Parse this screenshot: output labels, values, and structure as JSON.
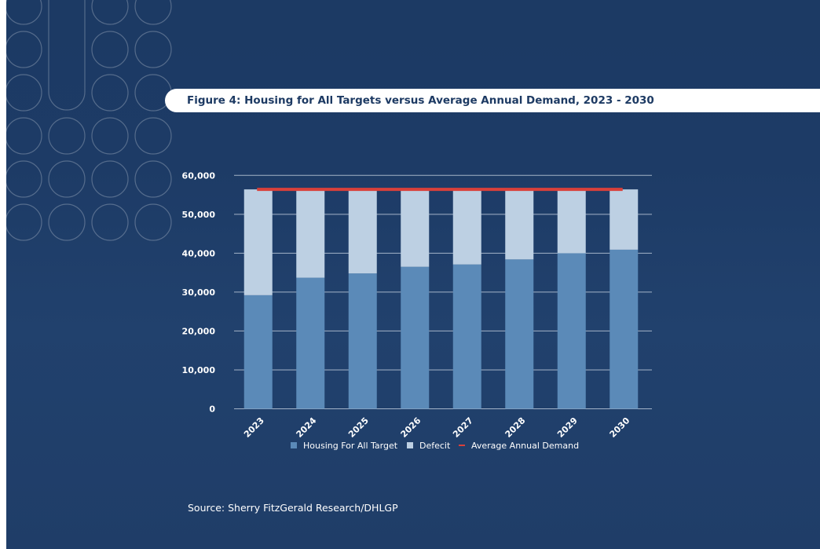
{
  "title": "Figure 4: Housing for All Targets versus Average Annual Demand, 2023 - 2030",
  "source": "Source: Sherry FitzGerald Research/DHLGP",
  "colors": {
    "background": "#1d3a63",
    "target": "#5b8ab8",
    "defecit": "#bdd0e3",
    "demand": "#d9403a"
  },
  "chart_data": {
    "type": "bar",
    "stacked": true,
    "categories": [
      "2023",
      "2024",
      "2025",
      "2026",
      "2027",
      "2028",
      "2029",
      "2030"
    ],
    "series": [
      {
        "name": "Housing For All Target",
        "values": [
          29200,
          33700,
          34800,
          36500,
          37100,
          38400,
          40000,
          40900
        ]
      },
      {
        "name": "Defecit",
        "values": [
          27200,
          22700,
          21600,
          19900,
          19300,
          18000,
          16400,
          15500
        ]
      },
      {
        "name": "Average Annual Demand",
        "type": "line",
        "values": [
          56400,
          56400,
          56400,
          56400,
          56400,
          56400,
          56400,
          56400
        ]
      }
    ],
    "ylim": [
      0,
      60000
    ],
    "yticks": [
      "0",
      "10,000",
      "20,000",
      "30,000",
      "40,000",
      "50,000",
      "60,000"
    ],
    "grid": true,
    "legend": "bottom"
  }
}
